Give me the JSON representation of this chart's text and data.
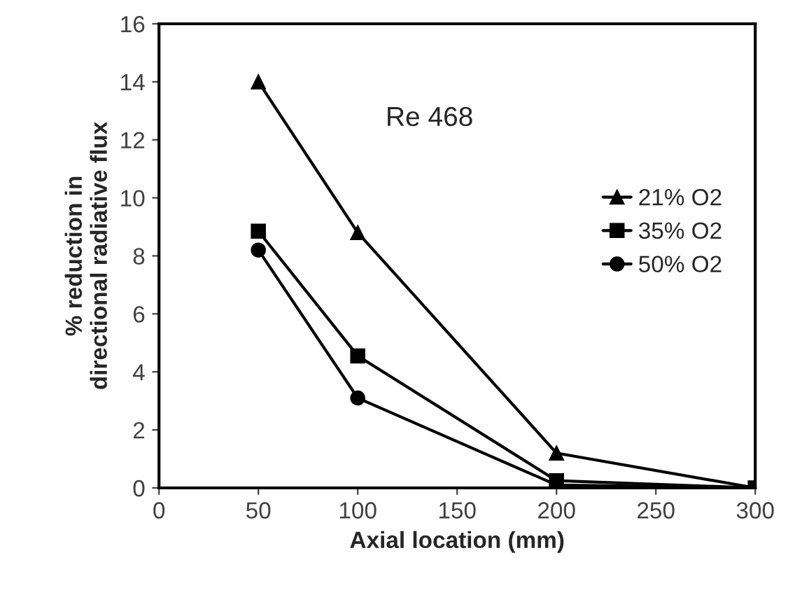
{
  "chart_data": {
    "type": "line",
    "xlabel": "Axial location (mm)",
    "ylabel": "% reduction in\ndirectional radiative flux",
    "x": [
      50,
      100,
      200,
      300
    ],
    "series": [
      {
        "name": "21% O2",
        "color": "#000000",
        "marker": "triangle",
        "values": [
          14.0,
          8.8,
          1.2,
          0
        ]
      },
      {
        "name": "35% O2",
        "color": "#000000",
        "marker": "square",
        "values": [
          8.85,
          4.55,
          0.25,
          0
        ]
      },
      {
        "name": "50% O2",
        "color": "#000000",
        "marker": "circle",
        "values": [
          8.2,
          3.1,
          0.1,
          0
        ]
      }
    ],
    "annotations": [
      "Re 468"
    ],
    "xlim": [
      0,
      300
    ],
    "xticks": [
      0,
      50,
      100,
      150,
      200,
      250,
      300
    ],
    "ylim": [
      0,
      16
    ],
    "yticks": [
      0,
      2,
      4,
      6,
      8,
      10,
      12,
      14,
      16
    ],
    "grid": false,
    "legend": "right",
    "line_style": "solid"
  }
}
